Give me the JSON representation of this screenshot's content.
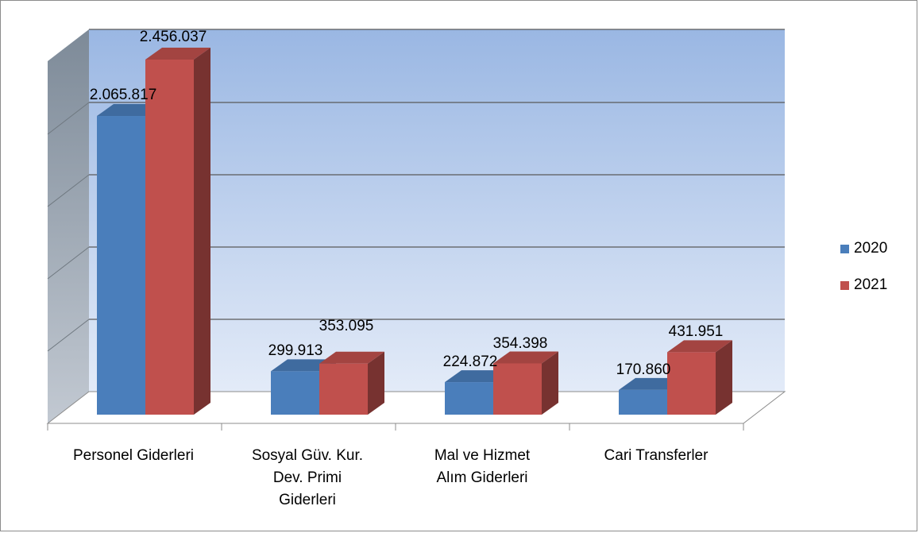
{
  "chart_data": {
    "type": "bar",
    "style": "3d-clustered-column",
    "categories": [
      "Personel Giderleri",
      "Sosyal Güv. Kur.\nDev. Primi\nGiderleri",
      "Mal ve Hizmet\nAlım Giderleri",
      "Cari Transferler"
    ],
    "series": [
      {
        "name": "2020",
        "color": "#4a7ebb",
        "values": [
          2065817,
          299913,
          224872,
          170860
        ],
        "labels": [
          "2.065.817",
          "299.913",
          "224.872",
          "170.860"
        ]
      },
      {
        "name": "2021",
        "color": "#c0504d",
        "values": [
          2456037,
          353095,
          354398,
          431951
        ],
        "labels": [
          "2.456.037",
          "353.095",
          "354.398",
          "431.951"
        ]
      }
    ],
    "ylim": [
      0,
      2500000
    ],
    "grid": true,
    "legend_position": "right",
    "title": "",
    "xlabel": "",
    "ylabel": ""
  }
}
